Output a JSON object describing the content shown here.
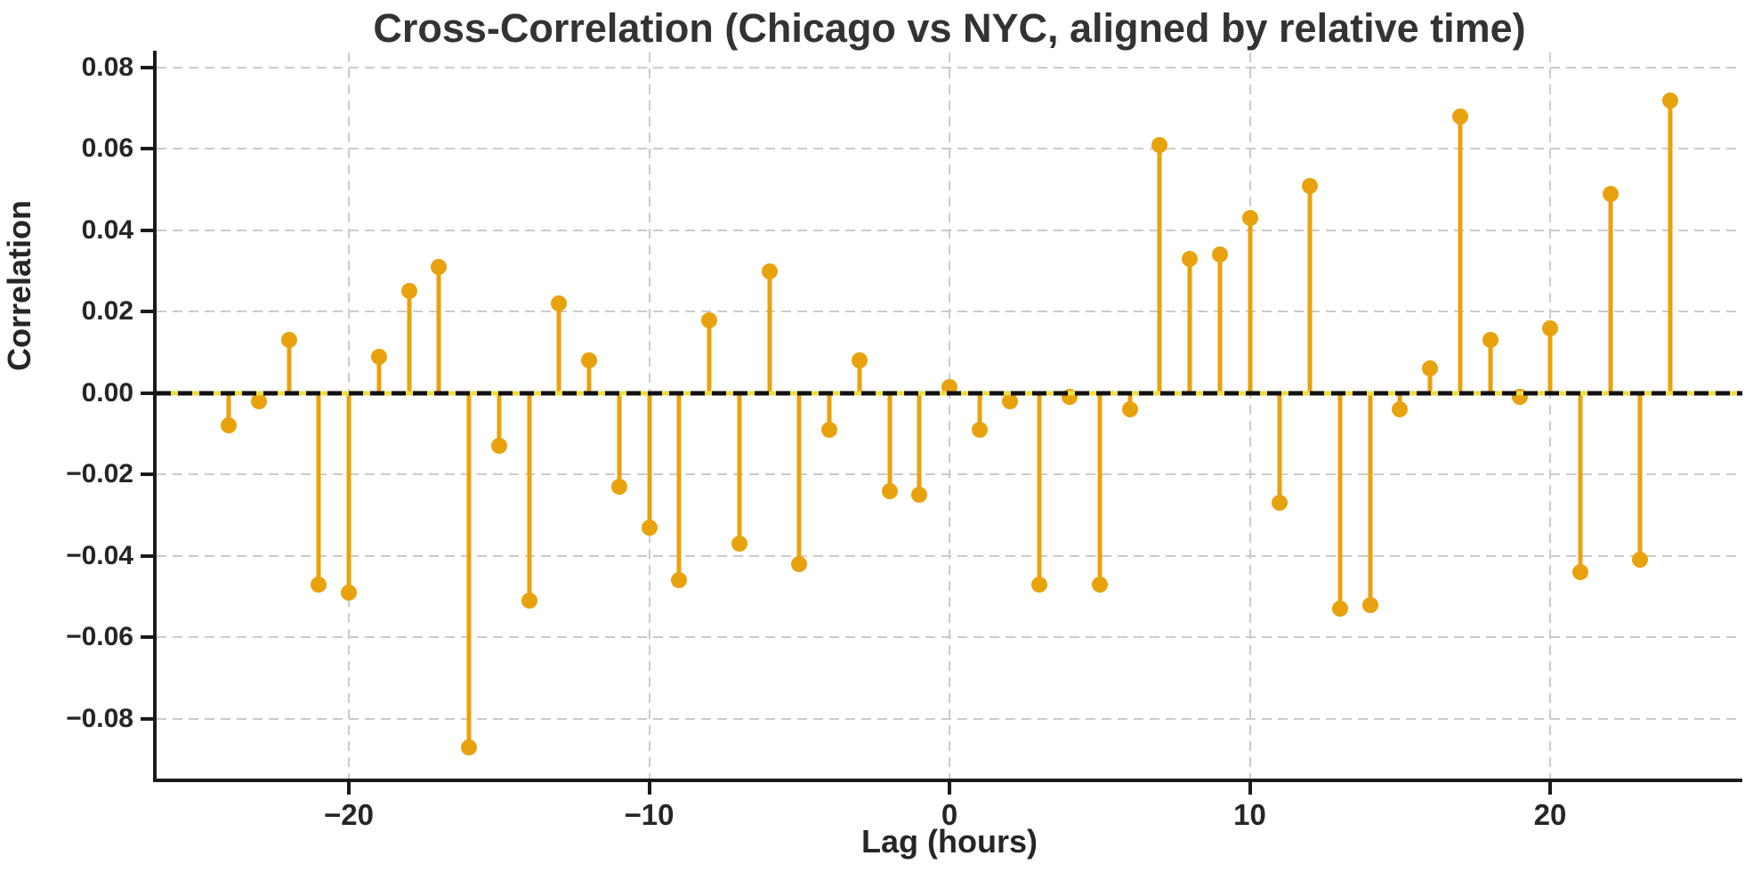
{
  "chart_data": {
    "type": "stem",
    "title": "Cross-Correlation (Chicago vs NYC, aligned by relative time)",
    "xlabel": "Lag (hours)",
    "ylabel": "Correlation",
    "x": [
      -24,
      -23,
      -22,
      -21,
      -20,
      -19,
      -18,
      -17,
      -16,
      -15,
      -14,
      -13,
      -12,
      -11,
      -10,
      -9,
      -8,
      -7,
      -6,
      -5,
      -4,
      -3,
      -2,
      -1,
      0,
      1,
      2,
      3,
      4,
      5,
      6,
      7,
      8,
      9,
      10,
      11,
      12,
      13,
      14,
      15,
      16,
      17,
      18,
      19,
      20,
      21,
      22,
      23,
      24
    ],
    "values": [
      -0.008,
      -0.002,
      0.013,
      -0.047,
      -0.049,
      0.009,
      0.025,
      0.031,
      -0.087,
      -0.013,
      -0.051,
      0.022,
      0.008,
      -0.023,
      -0.033,
      -0.046,
      0.018,
      -0.037,
      0.03,
      -0.042,
      -0.009,
      0.008,
      -0.024,
      -0.025,
      0.0015,
      -0.009,
      -0.002,
      -0.047,
      -0.001,
      -0.047,
      -0.004,
      0.061,
      0.033,
      0.034,
      0.043,
      -0.027,
      0.051,
      -0.053,
      -0.052,
      -0.004,
      0.006,
      0.068,
      0.013,
      -0.001,
      0.016,
      -0.044,
      0.049,
      -0.041,
      0.072
    ],
    "x_ticks": [
      -20,
      -10,
      0,
      10,
      20
    ],
    "x_tick_labels": [
      "−20",
      "−10",
      "0",
      "10",
      "20"
    ],
    "y_ticks": [
      0.08,
      0.06,
      0.04,
      0.02,
      0.0,
      -0.02,
      -0.04,
      -0.06,
      -0.08
    ],
    "y_tick_labels": [
      "0.08",
      "0.06",
      "0.04",
      "0.02",
      "0.00",
      "−0.02",
      "−0.04",
      "−0.06",
      "−0.08"
    ],
    "xlim": [
      -26.4,
      26.4
    ],
    "ylim": [
      -0.0947,
      0.0837
    ],
    "grid": true,
    "baseline_y": 0,
    "colors": {
      "stem": "#E8A20D",
      "marker": "#E8A20D",
      "baseline_dash": "#111111",
      "baseline_under": "#F0DD3F",
      "grid": "#CBCBCB",
      "spine": "#1A1A1A",
      "title_text": "#333333",
      "tick_text": "#262626"
    }
  }
}
